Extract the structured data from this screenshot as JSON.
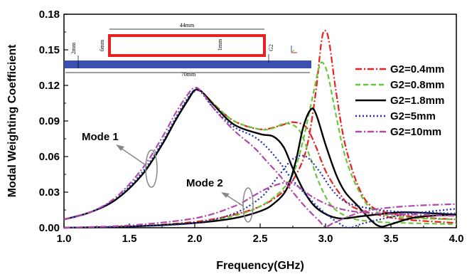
{
  "chart_data": {
    "type": "line",
    "xlabel": "Frequency(GHz)",
    "ylabel": "Modal Weighting Coefficient",
    "xlim": [
      1.0,
      4.0
    ],
    "ylim": [
      0.0,
      0.18
    ],
    "x_ticks": [
      "1.0",
      "1.5",
      "2.0",
      "2.5",
      "3.0",
      "3.5",
      "4.0"
    ],
    "y_ticks": [
      "0.00",
      "0.03",
      "0.06",
      "0.09",
      "0.12",
      "0.15",
      "0.18"
    ],
    "grid": false,
    "legend_position": "right",
    "series": [
      {
        "name": "G2=0.4mm",
        "color": "#e8201e",
        "dash": "dash-dot",
        "mode1": [
          [
            1.0,
            0.007
          ],
          [
            1.2,
            0.013
          ],
          [
            1.4,
            0.024
          ],
          [
            1.6,
            0.045
          ],
          [
            1.75,
            0.07
          ],
          [
            1.85,
            0.09
          ],
          [
            1.95,
            0.109
          ],
          [
            2.0,
            0.115
          ],
          [
            2.05,
            0.115
          ],
          [
            2.15,
            0.104
          ],
          [
            2.3,
            0.09
          ],
          [
            2.5,
            0.083
          ],
          [
            2.65,
            0.086
          ],
          [
            2.75,
            0.089
          ],
          [
            2.85,
            0.085
          ],
          [
            2.92,
            0.07
          ],
          [
            3.0,
            0.048
          ],
          [
            3.1,
            0.03
          ],
          [
            3.2,
            0.018
          ],
          [
            3.4,
            0.011
          ],
          [
            3.6,
            0.007
          ],
          [
            4.0,
            0.004
          ]
        ],
        "mode2": [
          [
            1.0,
            0.0
          ],
          [
            1.5,
            0.001
          ],
          [
            2.0,
            0.005
          ],
          [
            2.3,
            0.011
          ],
          [
            2.5,
            0.018
          ],
          [
            2.65,
            0.028
          ],
          [
            2.75,
            0.04
          ],
          [
            2.85,
            0.065
          ],
          [
            2.92,
            0.11
          ],
          [
            2.97,
            0.158
          ],
          [
            3.0,
            0.166
          ],
          [
            3.03,
            0.155
          ],
          [
            3.08,
            0.115
          ],
          [
            3.15,
            0.07
          ],
          [
            3.25,
            0.035
          ],
          [
            3.35,
            0.018
          ],
          [
            3.5,
            0.012
          ],
          [
            3.7,
            0.009
          ],
          [
            4.0,
            0.007
          ]
        ]
      },
      {
        "name": "G2=0.8mm",
        "color": "#6cc63c",
        "dash": "dash",
        "mode1": [
          [
            1.0,
            0.007
          ],
          [
            1.2,
            0.013
          ],
          [
            1.4,
            0.024
          ],
          [
            1.6,
            0.045
          ],
          [
            1.75,
            0.07
          ],
          [
            1.85,
            0.09
          ],
          [
            1.95,
            0.109
          ],
          [
            2.0,
            0.116
          ],
          [
            2.05,
            0.115
          ],
          [
            2.15,
            0.104
          ],
          [
            2.3,
            0.09
          ],
          [
            2.5,
            0.083
          ],
          [
            2.6,
            0.084
          ],
          [
            2.7,
            0.088
          ],
          [
            2.8,
            0.082
          ],
          [
            2.88,
            0.06
          ],
          [
            2.95,
            0.038
          ],
          [
            3.05,
            0.018
          ],
          [
            3.2,
            0.008
          ],
          [
            3.4,
            0.005
          ],
          [
            3.6,
            0.004
          ],
          [
            4.0,
            0.003
          ]
        ],
        "mode2": [
          [
            1.0,
            0.0
          ],
          [
            1.5,
            0.001
          ],
          [
            2.0,
            0.004
          ],
          [
            2.3,
            0.01
          ],
          [
            2.5,
            0.018
          ],
          [
            2.65,
            0.03
          ],
          [
            2.75,
            0.045
          ],
          [
            2.82,
            0.07
          ],
          [
            2.9,
            0.11
          ],
          [
            2.95,
            0.135
          ],
          [
            2.98,
            0.139
          ],
          [
            3.02,
            0.128
          ],
          [
            3.08,
            0.095
          ],
          [
            3.15,
            0.06
          ],
          [
            3.25,
            0.032
          ],
          [
            3.35,
            0.016
          ],
          [
            3.5,
            0.01
          ],
          [
            3.7,
            0.008
          ],
          [
            4.0,
            0.007
          ]
        ]
      },
      {
        "name": "G2=1.8mm",
        "color": "#000000",
        "dash": "solid",
        "mode1": [
          [
            1.0,
            0.007
          ],
          [
            1.2,
            0.013
          ],
          [
            1.4,
            0.024
          ],
          [
            1.6,
            0.045
          ],
          [
            1.75,
            0.07
          ],
          [
            1.85,
            0.09
          ],
          [
            1.95,
            0.108
          ],
          [
            2.0,
            0.116
          ],
          [
            2.05,
            0.115
          ],
          [
            2.15,
            0.103
          ],
          [
            2.3,
            0.087
          ],
          [
            2.5,
            0.079
          ],
          [
            2.6,
            0.077
          ],
          [
            2.68,
            0.068
          ],
          [
            2.75,
            0.05
          ],
          [
            2.85,
            0.028
          ],
          [
            2.95,
            0.015
          ],
          [
            3.1,
            0.008
          ],
          [
            3.3,
            0.01
          ],
          [
            3.6,
            0.013
          ],
          [
            4.0,
            0.011
          ]
        ],
        "mode2": [
          [
            1.0,
            0.0
          ],
          [
            1.5,
            0.001
          ],
          [
            2.0,
            0.004
          ],
          [
            2.3,
            0.008
          ],
          [
            2.5,
            0.014
          ],
          [
            2.6,
            0.02
          ],
          [
            2.7,
            0.032
          ],
          [
            2.77,
            0.055
          ],
          [
            2.83,
            0.085
          ],
          [
            2.89,
            0.1
          ],
          [
            2.93,
            0.095
          ],
          [
            3.0,
            0.07
          ],
          [
            3.08,
            0.045
          ],
          [
            3.15,
            0.03
          ],
          [
            3.25,
            0.018
          ],
          [
            3.35,
            0.006
          ],
          [
            3.42,
            0.001
          ],
          [
            3.5,
            0.003
          ],
          [
            3.7,
            0.009
          ],
          [
            4.0,
            0.011
          ]
        ]
      },
      {
        "name": "G2=5mm",
        "color": "#1f2eb0",
        "dash": "dot",
        "mode1": [
          [
            1.0,
            0.007
          ],
          [
            1.2,
            0.013
          ],
          [
            1.4,
            0.025
          ],
          [
            1.6,
            0.047
          ],
          [
            1.75,
            0.072
          ],
          [
            1.85,
            0.092
          ],
          [
            1.95,
            0.11
          ],
          [
            2.0,
            0.116
          ],
          [
            2.05,
            0.114
          ],
          [
            2.15,
            0.1
          ],
          [
            2.3,
            0.085
          ],
          [
            2.45,
            0.077
          ],
          [
            2.55,
            0.068
          ],
          [
            2.65,
            0.055
          ],
          [
            2.75,
            0.04
          ],
          [
            2.9,
            0.022
          ],
          [
            3.0,
            0.012
          ],
          [
            3.1,
            0.004
          ],
          [
            3.18,
            0.0
          ],
          [
            3.3,
            0.004
          ],
          [
            3.6,
            0.011
          ],
          [
            4.0,
            0.016
          ]
        ],
        "mode2": [
          [
            1.0,
            0.0
          ],
          [
            1.5,
            0.001
          ],
          [
            2.0,
            0.004
          ],
          [
            2.3,
            0.012
          ],
          [
            2.5,
            0.025
          ],
          [
            2.6,
            0.038
          ],
          [
            2.65,
            0.045
          ],
          [
            2.75,
            0.058
          ],
          [
            2.85,
            0.06
          ],
          [
            2.95,
            0.048
          ],
          [
            3.05,
            0.032
          ],
          [
            3.15,
            0.022
          ],
          [
            3.3,
            0.017
          ],
          [
            3.5,
            0.014
          ],
          [
            3.7,
            0.013
          ],
          [
            4.0,
            0.012
          ]
        ]
      },
      {
        "name": "G2=10mm",
        "color": "#b04aa8",
        "dash": "dash-dot",
        "mode1": [
          [
            1.0,
            0.007
          ],
          [
            1.2,
            0.013
          ],
          [
            1.4,
            0.026
          ],
          [
            1.6,
            0.05
          ],
          [
            1.75,
            0.076
          ],
          [
            1.85,
            0.096
          ],
          [
            1.95,
            0.113
          ],
          [
            2.0,
            0.118
          ],
          [
            2.05,
            0.115
          ],
          [
            2.15,
            0.1
          ],
          [
            2.3,
            0.082
          ],
          [
            2.45,
            0.068
          ],
          [
            2.55,
            0.056
          ],
          [
            2.65,
            0.044
          ],
          [
            2.75,
            0.03
          ],
          [
            2.85,
            0.017
          ],
          [
            2.95,
            0.006
          ],
          [
            3.0,
            0.001
          ],
          [
            3.08,
            0.005
          ],
          [
            3.3,
            0.014
          ],
          [
            3.6,
            0.018
          ],
          [
            4.0,
            0.02
          ]
        ],
        "mode2": [
          [
            1.0,
            0.0
          ],
          [
            1.5,
            0.002
          ],
          [
            2.0,
            0.008
          ],
          [
            2.3,
            0.018
          ],
          [
            2.45,
            0.027
          ],
          [
            2.55,
            0.033
          ],
          [
            2.65,
            0.037
          ],
          [
            2.72,
            0.038
          ],
          [
            2.8,
            0.034
          ],
          [
            2.9,
            0.026
          ],
          [
            3.05,
            0.018
          ],
          [
            3.2,
            0.014
          ],
          [
            3.4,
            0.012
          ],
          [
            3.7,
            0.011
          ],
          [
            4.0,
            0.01
          ]
        ]
      }
    ],
    "annotations": [
      "Mode 1",
      "Mode 2"
    ],
    "inset": {
      "dimensions": [
        "44mm",
        "70mm",
        "6mm",
        "2mm",
        "1mm",
        "G2"
      ]
    }
  }
}
